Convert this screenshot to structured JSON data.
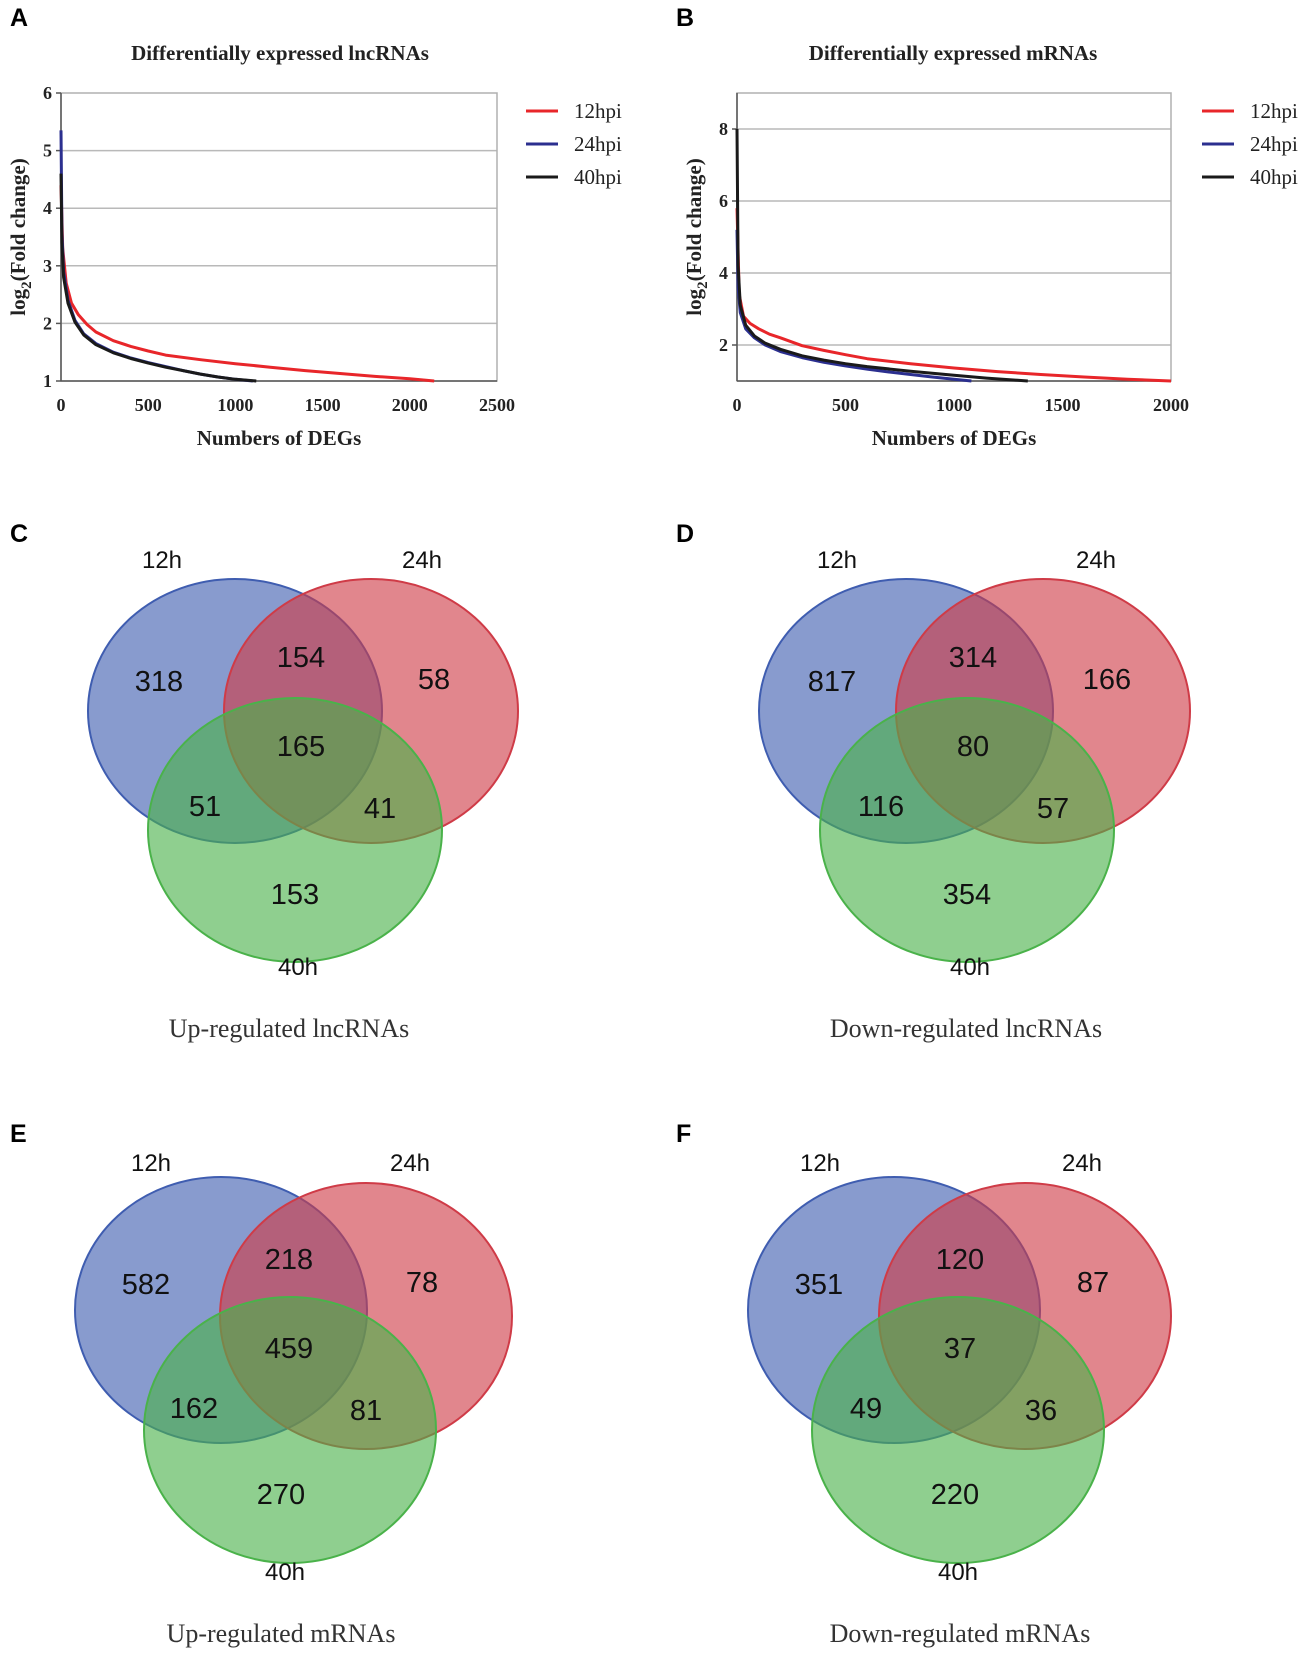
{
  "panel_labels": [
    "A",
    "B",
    "C",
    "D",
    "E",
    "F"
  ],
  "chart_data": [
    {
      "type": "line",
      "title": "Differentially expressed lncRNAs",
      "xlabel": "Numbers of DEGs",
      "ylabel_base": "log",
      "ylabel_sub": "2",
      "ylabel_rest": "(Fold change)",
      "xlim": [
        0,
        2500
      ],
      "ylim": [
        1,
        6
      ],
      "xticks": [
        "0",
        "500",
        "1000",
        "1500",
        "2000",
        "2500"
      ],
      "yticks": [
        "1",
        "2",
        "3",
        "4",
        "5",
        "6"
      ],
      "ytick_values": [
        1,
        2,
        3,
        4,
        5,
        6
      ],
      "gridlines": [
        2,
        3,
        4,
        5
      ],
      "series": [
        {
          "name": "12hpi",
          "color": "#e8262a",
          "x": [
            0,
            10,
            30,
            60,
            100,
            150,
            200,
            300,
            400,
            500,
            600,
            800,
            1000,
            1200,
            1400,
            1600,
            1800,
            2000,
            2140
          ],
          "y": [
            4.4,
            3.3,
            2.7,
            2.35,
            2.15,
            1.98,
            1.85,
            1.7,
            1.6,
            1.52,
            1.45,
            1.37,
            1.3,
            1.24,
            1.18,
            1.13,
            1.08,
            1.04,
            1.0
          ]
        },
        {
          "name": "24hpi",
          "color": "#2b2f8f",
          "x": [
            0,
            5,
            15,
            40,
            80,
            130,
            200,
            300,
            400,
            500,
            600,
            700,
            800,
            900,
            1000,
            1100
          ],
          "y": [
            5.35,
            3.6,
            2.9,
            2.4,
            2.05,
            1.82,
            1.65,
            1.5,
            1.4,
            1.32,
            1.25,
            1.18,
            1.12,
            1.07,
            1.03,
            1.0
          ]
        },
        {
          "name": "40hpi",
          "color": "#1a1a1a",
          "x": [
            0,
            5,
            15,
            40,
            80,
            130,
            200,
            300,
            400,
            500,
            600,
            700,
            800,
            900,
            1000,
            1120
          ],
          "y": [
            4.6,
            3.4,
            2.8,
            2.35,
            2.02,
            1.8,
            1.63,
            1.49,
            1.39,
            1.31,
            1.24,
            1.18,
            1.12,
            1.07,
            1.03,
            1.0
          ]
        }
      ]
    },
    {
      "type": "line",
      "title": "Differentially expressed mRNAs",
      "xlabel": "Numbers of DEGs",
      "ylabel_base": "log",
      "ylabel_sub": "2",
      "ylabel_rest": "(Fold change)",
      "xlim": [
        0,
        2000
      ],
      "ylim": [
        1,
        9
      ],
      "xticks": [
        "0",
        "500",
        "1000",
        "1500",
        "2000"
      ],
      "yticks": [
        "2",
        "4",
        "6",
        "8"
      ],
      "ytick_values": [
        2,
        4,
        6,
        8
      ],
      "gridlines": [
        2,
        4,
        6,
        8
      ],
      "series": [
        {
          "name": "12hpi",
          "color": "#e8262a",
          "x": [
            0,
            10,
            30,
            60,
            100,
            150,
            200,
            300,
            400,
            500,
            600,
            800,
            1000,
            1200,
            1400,
            1600,
            1800,
            2000
          ],
          "y": [
            5.8,
            3.4,
            2.8,
            2.6,
            2.45,
            2.3,
            2.2,
            1.98,
            1.85,
            1.73,
            1.62,
            1.48,
            1.36,
            1.26,
            1.18,
            1.11,
            1.05,
            1.0
          ]
        },
        {
          "name": "24hpi",
          "color": "#2b2f8f",
          "x": [
            0,
            5,
            15,
            40,
            80,
            130,
            200,
            300,
            400,
            500,
            600,
            700,
            800,
            900,
            1000,
            1080
          ],
          "y": [
            5.2,
            3.6,
            2.9,
            2.45,
            2.2,
            2.0,
            1.82,
            1.65,
            1.52,
            1.42,
            1.33,
            1.25,
            1.18,
            1.11,
            1.05,
            1.0
          ]
        },
        {
          "name": "40hpi",
          "color": "#1a1a1a",
          "x": [
            0,
            5,
            15,
            40,
            80,
            130,
            200,
            300,
            400,
            500,
            600,
            800,
            1000,
            1150,
            1340
          ],
          "y": [
            8.0,
            4.2,
            3.1,
            2.55,
            2.25,
            2.05,
            1.88,
            1.7,
            1.58,
            1.48,
            1.4,
            1.27,
            1.16,
            1.08,
            1.0
          ]
        }
      ]
    },
    {
      "type": "venn",
      "caption": "Up-regulated lncRNAs",
      "sets": [
        "12h",
        "24h",
        "40h"
      ],
      "colors": [
        "#3f5db0",
        "#cf3b47",
        "#4ab24a"
      ],
      "regions": {
        "only_a": "318",
        "only_b": "58",
        "only_c": "153",
        "ab": "154",
        "ac": "51",
        "bc": "41",
        "abc": "165"
      }
    },
    {
      "type": "venn",
      "caption": "Down-regulated lncRNAs",
      "sets": [
        "12h",
        "24h",
        "40h"
      ],
      "colors": [
        "#3f5db0",
        "#cf3b47",
        "#4ab24a"
      ],
      "regions": {
        "only_a": "817",
        "only_b": "166",
        "only_c": "354",
        "ab": "314",
        "ac": "116",
        "bc": "57",
        "abc": "80"
      }
    },
    {
      "type": "venn",
      "caption": "Up-regulated mRNAs",
      "sets": [
        "12h",
        "24h",
        "40h"
      ],
      "colors": [
        "#3f5db0",
        "#cf3b47",
        "#4ab24a"
      ],
      "regions": {
        "only_a": "582",
        "only_b": "78",
        "only_c": "270",
        "ab": "218",
        "ac": "162",
        "bc": "81",
        "abc": "459"
      }
    },
    {
      "type": "venn",
      "caption": "Down-regulated mRNAs",
      "sets": [
        "12h",
        "24h",
        "40h"
      ],
      "colors": [
        "#3f5db0",
        "#cf3b47",
        "#4ab24a"
      ],
      "regions": {
        "only_a": "351",
        "only_b": "87",
        "only_c": "220",
        "ab": "120",
        "ac": "49",
        "bc": "36",
        "abc": "37"
      }
    }
  ]
}
